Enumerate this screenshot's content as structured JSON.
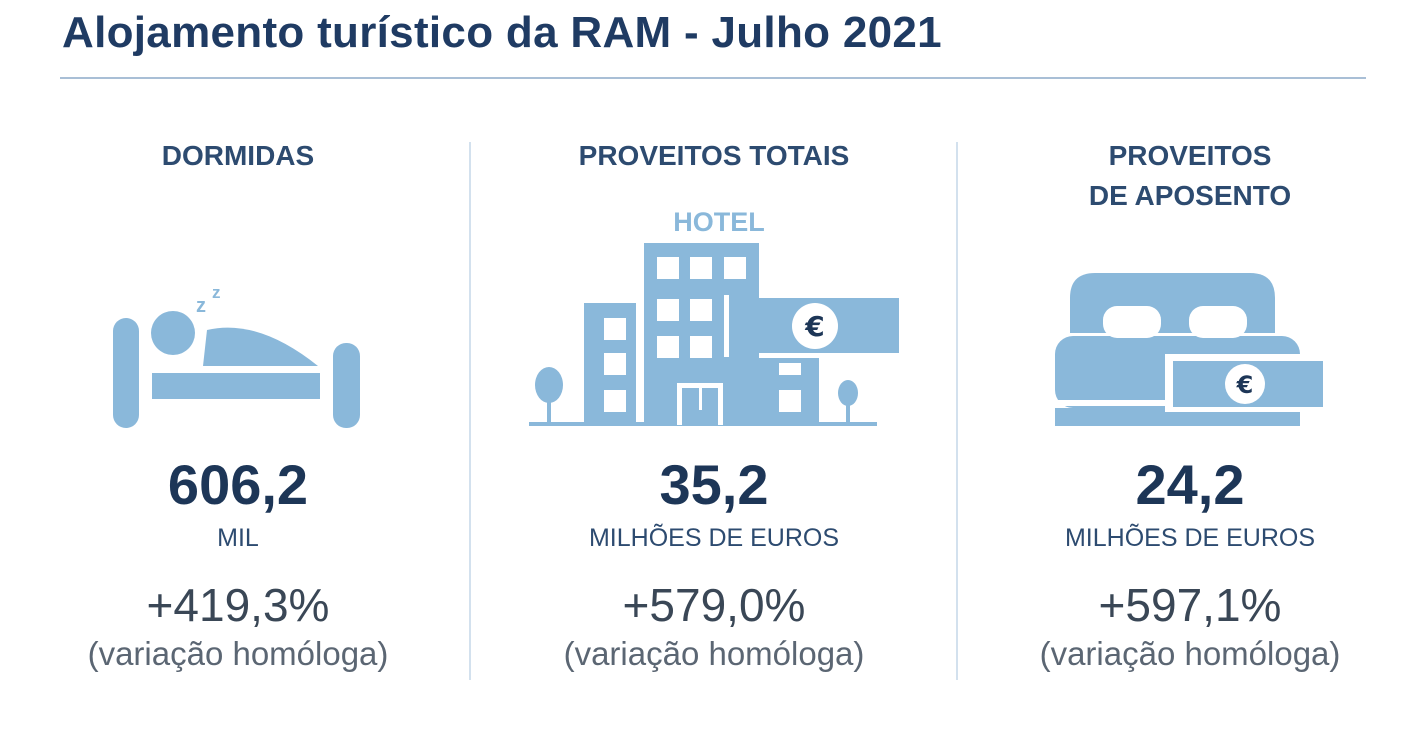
{
  "title": "Alojamento turístico da RAM - Julho 2021",
  "colors": {
    "navy": "#1d3657",
    "icon_blue": "#8ab8da",
    "rule": "#a9bfd6"
  },
  "columns": [
    {
      "header": [
        "DORMIDAS"
      ],
      "icon": "sleeping-in-bed-icon",
      "value": "606,2",
      "unit": "MIL",
      "change": "+419,3%",
      "note": "(variação homóloga)"
    },
    {
      "header": [
        "PROVEITOS TOTAIS"
      ],
      "icon": "hotel-with-euro-banknote-icon",
      "icon_label": "HOTEL",
      "value": "35,2",
      "unit": "MILHÕES DE EUROS",
      "change": "+579,0%",
      "note": "(variação homóloga)"
    },
    {
      "header": [
        "PROVEITOS",
        "DE APOSENTO"
      ],
      "icon": "bed-with-euro-banknote-icon",
      "value": "24,2",
      "unit": "MILHÕES DE EUROS",
      "change": "+597,1%",
      "note": "(variação homóloga)"
    }
  ]
}
